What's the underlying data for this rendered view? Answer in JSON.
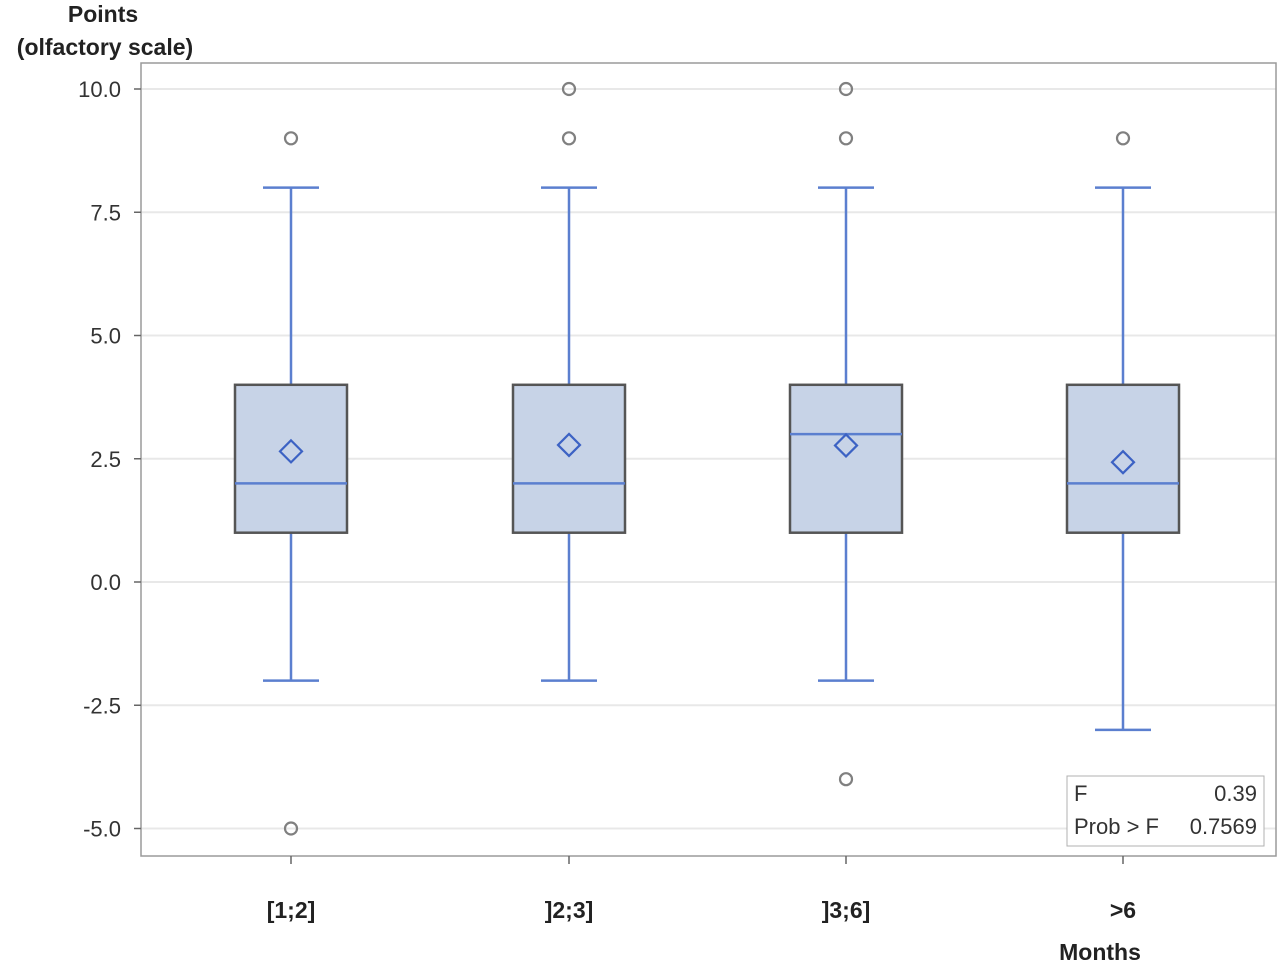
{
  "chart_data": {
    "type": "box",
    "ylabel_lines": [
      "Points",
      "(olfactory scale)"
    ],
    "xlabel": "Months",
    "ylim": [
      -5.5,
      10.5
    ],
    "yticks": [
      10.0,
      7.5,
      5.0,
      2.5,
      0.0,
      -2.5,
      -5.0
    ],
    "grid": "horizontal",
    "colors": {
      "box_fill": "#c7d3e7",
      "box_edge": "#555555",
      "whisker": "#5b7fcf",
      "mean": "#3c62c4",
      "outlier": "#808080",
      "grid": "#e8e8e8"
    },
    "groups": [
      {
        "label": "[1;2]",
        "whisker_low": -2,
        "q1": 1,
        "median": 2,
        "q3": 4,
        "whisker_high": 8,
        "mean": 2.65,
        "outliers": [
          9,
          -5
        ]
      },
      {
        "label": "]2;3]",
        "whisker_low": -2,
        "q1": 1,
        "median": 2,
        "q3": 4,
        "whisker_high": 8,
        "mean": 2.78,
        "outliers": [
          10,
          9
        ]
      },
      {
        "label": "]3;6]",
        "whisker_low": -2,
        "q1": 1,
        "median": 3,
        "q3": 4,
        "whisker_high": 8,
        "mean": 2.77,
        "outliers": [
          10,
          9,
          -4
        ]
      },
      {
        "label": ">6",
        "whisker_low": -3,
        "q1": 1,
        "median": 2,
        "q3": 4,
        "whisker_high": 8,
        "mean": 2.43,
        "outliers": [
          9
        ]
      }
    ],
    "stats": [
      {
        "name": "F",
        "value": "0.39"
      },
      {
        "name": "Prob > F",
        "value": "0.7569"
      }
    ]
  }
}
